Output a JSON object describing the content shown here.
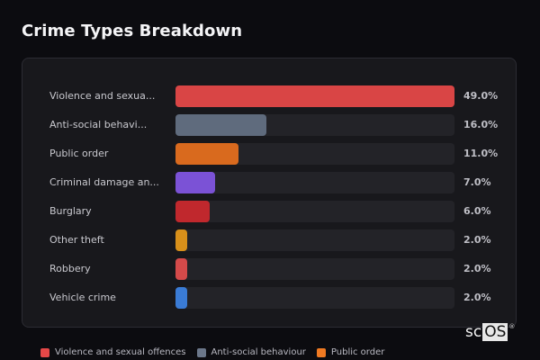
{
  "title": "Crime Types Breakdown",
  "chart_data": {
    "type": "bar",
    "orientation": "horizontal",
    "title": "Crime Types Breakdown",
    "categories": [
      "Violence and sexual offences",
      "Anti-social behaviour",
      "Public order",
      "Criminal damage and arson",
      "Burglary",
      "Other theft",
      "Robbery",
      "Vehicle crime"
    ],
    "display_labels": [
      "Violence and sexua...",
      "Anti-social behavi...",
      "Public order",
      "Criminal damage an...",
      "Burglary",
      "Other theft",
      "Robbery",
      "Vehicle crime"
    ],
    "values": [
      49.0,
      16.0,
      11.0,
      7.0,
      6.0,
      2.0,
      2.0,
      2.0
    ],
    "value_labels": [
      "49.0%",
      "16.0%",
      "11.0%",
      "7.0%",
      "6.0%",
      "2.0%",
      "2.0%",
      "2.0%"
    ],
    "colors": [
      "#d94545",
      "#5f6b7d",
      "#d96a1e",
      "#7b52d6",
      "#c0282d",
      "#d8901a",
      "#d44a4a",
      "#3a7bd5"
    ],
    "xlabel": "",
    "ylabel": "",
    "unit": "%",
    "scale_max": 49.0,
    "grid": false,
    "legend_position": "bottom"
  },
  "legend": [
    {
      "label": "Violence and sexual offences",
      "color": "#e64848"
    },
    {
      "label": "Anti-social behaviour",
      "color": "#6b778a"
    },
    {
      "label": "Public order",
      "color": "#f07a22"
    }
  ],
  "logo": {
    "sc": "sc",
    "os": "OS",
    "reg": "®"
  }
}
